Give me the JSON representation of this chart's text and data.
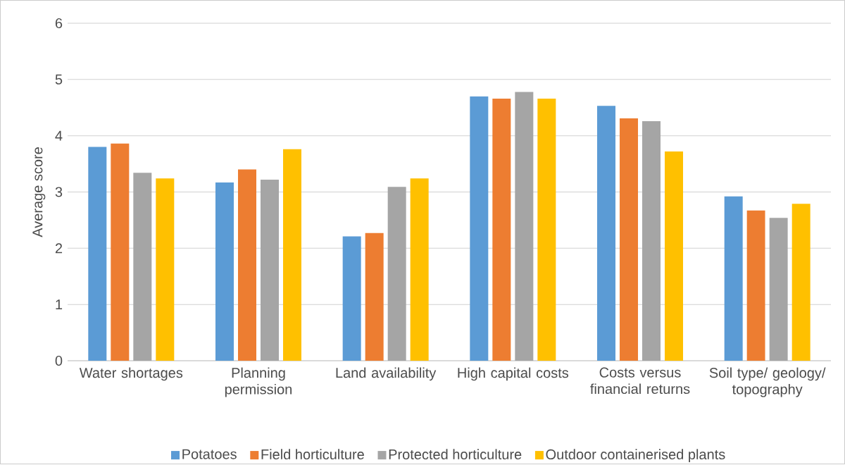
{
  "chart_data": {
    "type": "bar",
    "ylabel": "Average score",
    "categories": [
      "Water shortages",
      "Planning permission",
      "Land availability",
      "High capital costs",
      "Costs versus financial returns",
      "Soil type/ geology/ topography"
    ],
    "series": [
      {
        "name": "Potatoes",
        "color": "#5b9bd5",
        "values": [
          3.8,
          3.17,
          2.21,
          4.7,
          4.53,
          2.92
        ]
      },
      {
        "name": "Field horticulture",
        "color": "#ed7d31",
        "values": [
          3.86,
          3.4,
          2.27,
          4.66,
          4.31,
          2.67
        ]
      },
      {
        "name": "Protected horticulture",
        "color": "#a5a5a5",
        "values": [
          3.34,
          3.22,
          3.09,
          4.78,
          4.26,
          2.54
        ]
      },
      {
        "name": "Outdoor containerised plants",
        "color": "#ffc000",
        "values": [
          3.24,
          3.76,
          3.24,
          4.66,
          3.72,
          2.79
        ]
      }
    ],
    "ylim": [
      0,
      6
    ],
    "yticks": [
      0,
      1,
      2,
      3,
      4,
      5,
      6
    ],
    "grid": "y",
    "legend": "bottom"
  }
}
